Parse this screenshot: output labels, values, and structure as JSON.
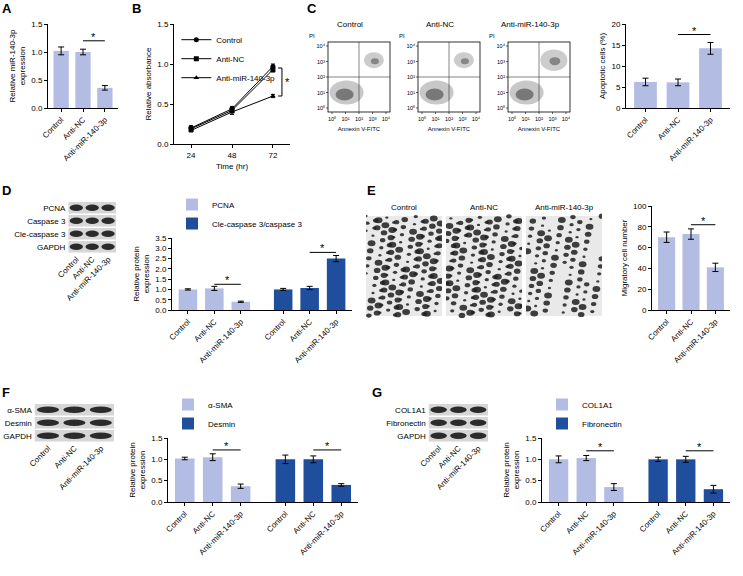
{
  "chart_data": [
    {
      "panel": "A",
      "type": "bar",
      "categories": [
        "Control",
        "Anti-NC",
        "Anti-miR-140-3p"
      ],
      "values": [
        1.02,
        1.0,
        0.36
      ],
      "errors": [
        0.07,
        0.05,
        0.04
      ],
      "color": "#b3bce3",
      "y_label": "Relative miR-140-3p expression",
      "ylim": [
        0,
        1.5
      ],
      "yticks": [
        {
          "value": 0,
          "label": "0.0"
        },
        0.5,
        {
          "value": 1,
          "label": "1.0"
        },
        1.5
      ],
      "significance": [
        {
          "from": 1,
          "to": 2,
          "y": 1.2,
          "text": "*"
        }
      ]
    },
    {
      "panel": "B",
      "type": "line",
      "x": [
        24,
        48,
        72
      ],
      "series": [
        {
          "name": "Control",
          "color": "#000000",
          "marker": "circle",
          "values": [
            0.2,
            0.44,
            0.97
          ],
          "errors": [
            0.03,
            0.03,
            0.03
          ]
        },
        {
          "name": "Anti-NC",
          "color": "#000000",
          "marker": "square",
          "values": [
            0.19,
            0.42,
            0.93
          ],
          "errors": [
            0.02,
            0.03,
            0.03
          ]
        },
        {
          "name": "Anti-miR-140-3p",
          "color": "#000000",
          "marker": "triangle-up",
          "values": [
            0.17,
            0.4,
            0.6
          ],
          "errors": [
            0.02,
            0.03,
            0.02
          ]
        }
      ],
      "x_label": "Time (hr)",
      "y_label": "Relative absorbance",
      "xlim": [
        14,
        82
      ],
      "xticks": [
        24,
        48,
        72
      ],
      "ylim": [
        0,
        1.5
      ],
      "yticks": [
        {
          "value": 0,
          "label": "0.0"
        },
        0.5,
        {
          "value": 1,
          "label": "1.0"
        },
        1.5
      ],
      "legend": "top-left",
      "significance": [
        {
          "x": 72,
          "from": 0.6,
          "to": 0.95,
          "text": "*"
        }
      ]
    },
    {
      "type": "bar",
      "categories": [
        "Control",
        "Anti-NC",
        "Anti-miR-140-3p"
      ],
      "values": [
        6.2,
        6.1,
        14.2
      ],
      "errors": [
        0.9,
        0.8,
        1.4
      ],
      "color": "#b3bce3",
      "y_label": "Apoptotic cells (%)",
      "ylim": [
        0,
        20
      ],
      "yticks": [
        0,
        5,
        10,
        15,
        20
      ],
      "significance": [
        {
          "from": 1,
          "to": 2,
          "y": 17.5,
          "text": "*"
        }
      ]
    },
    {
      "type": "bar",
      "categories": [
        "Control",
        "Anti-NC",
        "Anti-miR-140-3p"
      ],
      "series": [
        {
          "name": "PCNA",
          "color": "#b3bce3",
          "values": [
            1.0,
            1.05,
            0.4
          ],
          "errors": [
            0.03,
            0.1,
            0.03
          ]
        },
        {
          "name": "Cle-caspase 3/caspase 3",
          "color": "#1f4e9c",
          "values": [
            1.0,
            1.07,
            2.5
          ],
          "errors": [
            0.05,
            0.08,
            0.15
          ]
        }
      ],
      "y_label": "Relative protein expression",
      "ylim": [
        0,
        3.5
      ],
      "yticks": [
        {
          "value": 0,
          "label": "0.0"
        },
        0.5,
        {
          "value": 1,
          "label": "1.0"
        },
        1.5,
        {
          "value": 2,
          "label": "2.0"
        },
        2.5,
        {
          "value": 3,
          "label": "3.0"
        },
        3.5
      ],
      "legend": "top",
      "significance": [
        {
          "series": 0,
          "from": 1,
          "to": 2,
          "y": 1.25,
          "text": "*"
        },
        {
          "series": 1,
          "from": 1,
          "to": 2,
          "y": 2.8,
          "text": "*"
        }
      ]
    },
    {
      "type": "bar",
      "categories": [
        "Control",
        "Anti-NC",
        "Anti-miR-140-3p"
      ],
      "values": [
        70,
        73,
        41
      ],
      "errors": [
        5,
        5,
        4
      ],
      "color": "#b3bce3",
      "y_label": "Migratory cell number",
      "ylim": [
        0,
        100
      ],
      "yticks": [
        0,
        20,
        40,
        60,
        80,
        100
      ],
      "significance": [
        {
          "from": 1,
          "to": 2,
          "y": 82,
          "text": "*"
        }
      ]
    },
    {
      "type": "bar",
      "categories": [
        "Control",
        "Anti-NC",
        "Anti-miR-140-3p"
      ],
      "series": [
        {
          "name": "α-SMA",
          "color": "#b3bce3",
          "values": [
            1.02,
            1.05,
            0.37
          ],
          "errors": [
            0.03,
            0.08,
            0.05
          ]
        },
        {
          "name": "Desmin",
          "color": "#1f4e9c",
          "values": [
            1.0,
            1.0,
            0.4
          ],
          "errors": [
            0.1,
            0.08,
            0.03
          ]
        }
      ],
      "y_label": "Relative protein expression",
      "ylim": [
        0,
        1.5
      ],
      "yticks": [
        {
          "value": 0,
          "label": "0.0"
        },
        0.5,
        {
          "value": 1,
          "label": "1.0"
        },
        1.5
      ],
      "legend": "top",
      "significance": [
        {
          "series": 0,
          "from": 1,
          "to": 2,
          "y": 1.22,
          "text": "*"
        },
        {
          "series": 1,
          "from": 1,
          "to": 2,
          "y": 1.22,
          "text": "*"
        }
      ]
    },
    {
      "type": "bar",
      "categories": [
        "Control",
        "Anti-NC",
        "Anti-miR-140-3p"
      ],
      "series": [
        {
          "name": "COL1A1",
          "color": "#b3bce3",
          "values": [
            1.0,
            1.03,
            0.35
          ],
          "errors": [
            0.08,
            0.06,
            0.08
          ]
        },
        {
          "name": "Fibronectin",
          "color": "#1f4e9c",
          "values": [
            1.0,
            1.0,
            0.3
          ],
          "errors": [
            0.05,
            0.07,
            0.09
          ]
        }
      ],
      "y_label": "Relative protein expression",
      "ylim": [
        0,
        1.5
      ],
      "yticks": [
        {
          "value": 0,
          "label": "0.0"
        },
        0.5,
        {
          "value": 1,
          "label": "1.0"
        },
        1.5
      ],
      "legend": "top",
      "significance": [
        {
          "series": 0,
          "from": 1,
          "to": 2,
          "y": 1.2,
          "text": "*"
        },
        {
          "series": 1,
          "from": 1,
          "to": 2,
          "y": 1.2,
          "text": "*"
        }
      ]
    }
  ],
  "flow": {
    "panel": "C",
    "panels": [
      "Control",
      "Anti-NC",
      "Anti-miR-140-3p"
    ],
    "x_label": "Annexin V-FITC",
    "y_label": "PI",
    "ticks": [
      "10⁰",
      "10¹",
      "10²",
      "10³",
      "10⁴"
    ]
  },
  "blots": [
    {
      "panel": "D",
      "rows": [
        "PCNA",
        "Caspase 3",
        "Cle-caspase 3",
        "GAPDH"
      ],
      "columns": [
        "Control",
        "Anti-NC",
        "Anti-miR-140-3p"
      ]
    },
    {
      "panel": "F",
      "rows": [
        "α-SMA",
        "Desmin",
        "GAPDH"
      ],
      "columns": [
        "Control",
        "Anti-NC",
        "Anti-miR-140-3p"
      ]
    },
    {
      "panel": "G",
      "rows": [
        "COL1A1",
        "Fibronectin",
        "GAPDH"
      ],
      "columns": [
        "Control",
        "Anti-NC",
        "Anti-miR-140-3p"
      ]
    }
  ],
  "transwell": {
    "panel": "E",
    "panels": [
      "Control",
      "Anti-NC",
      "Anti-miR-140-3p"
    ]
  }
}
